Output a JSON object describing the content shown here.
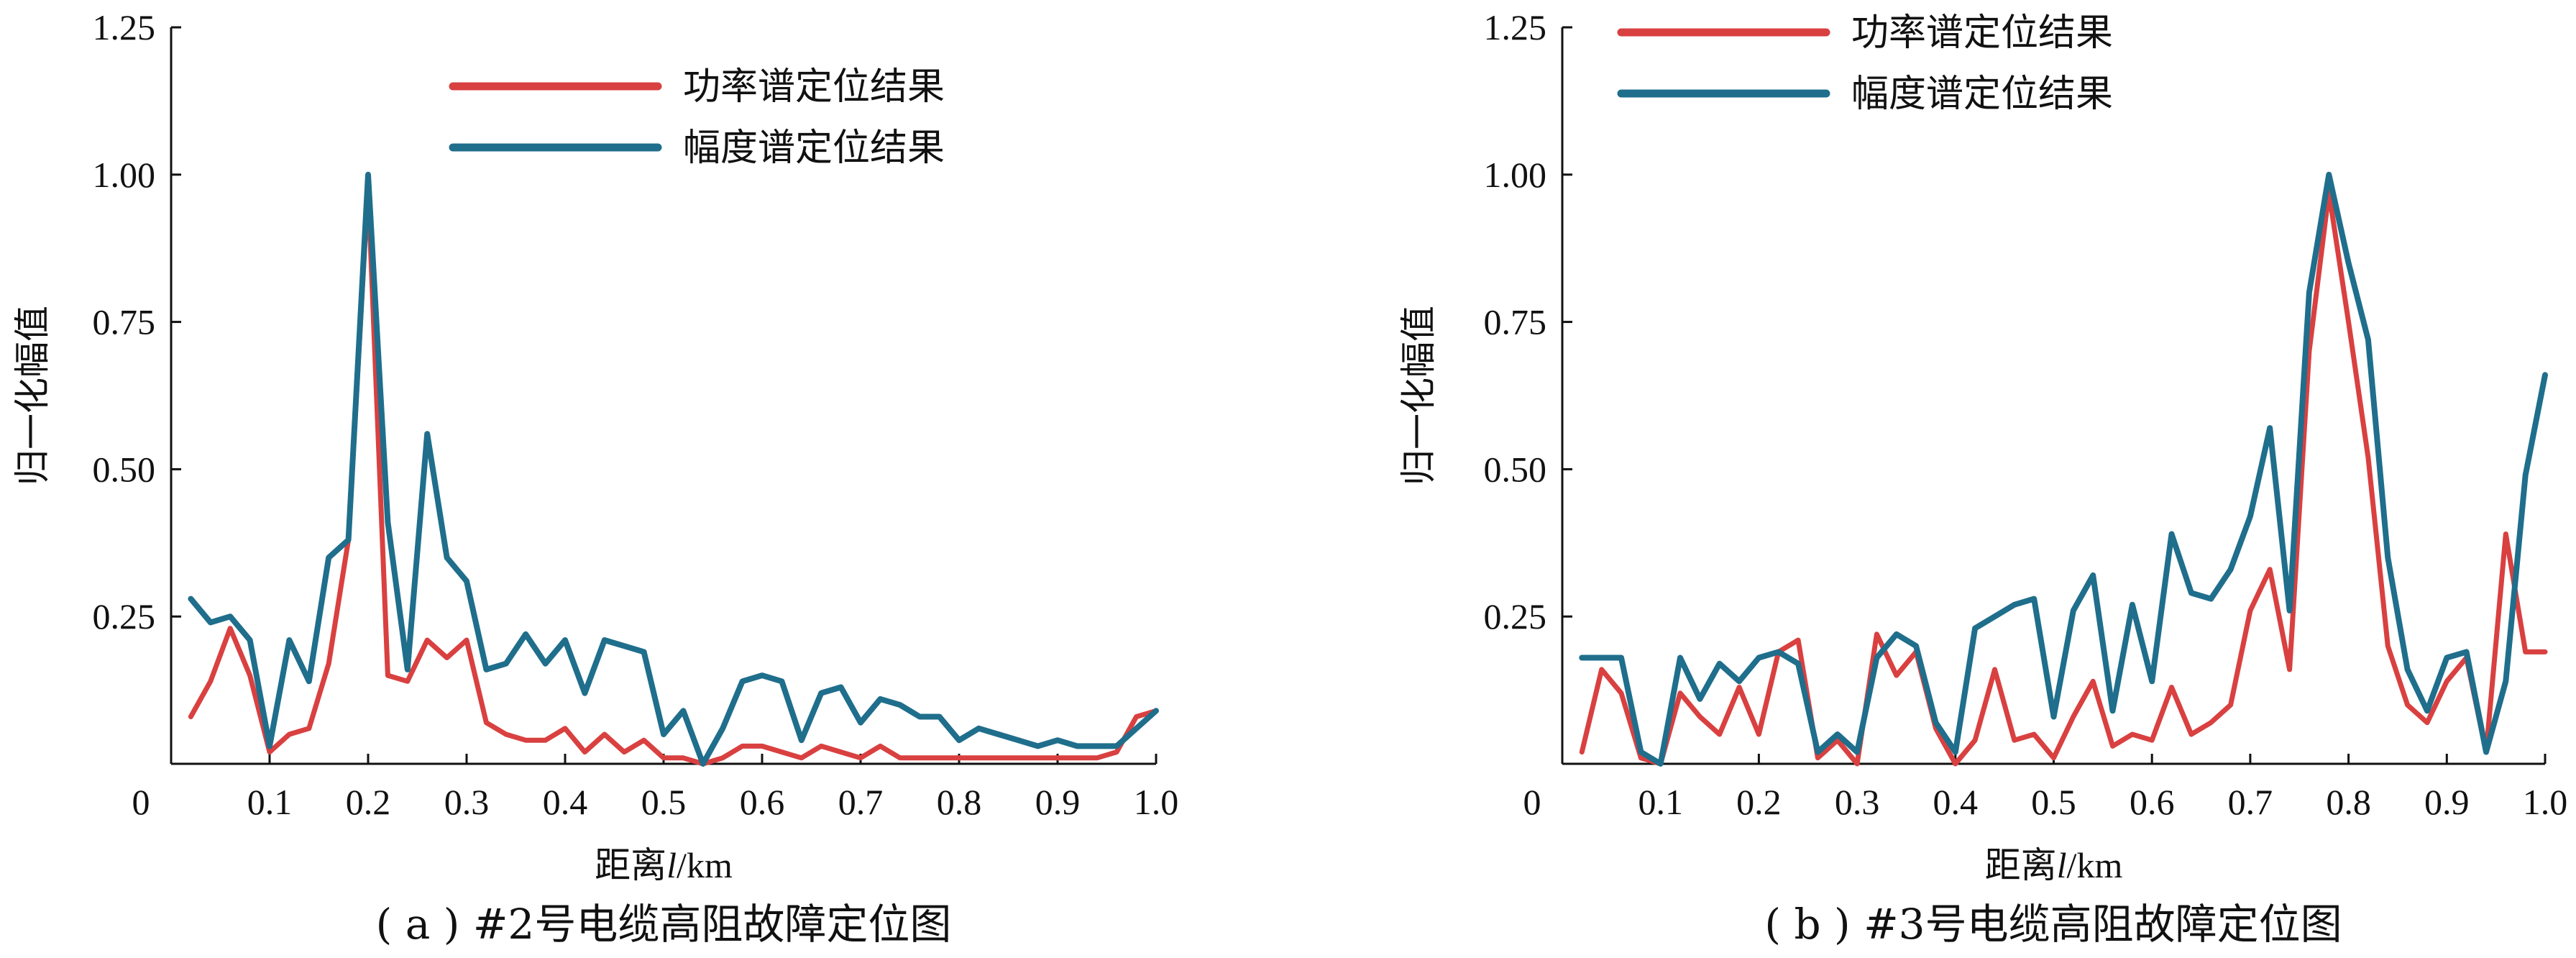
{
  "chart_data": [
    {
      "type": "line",
      "caption": "( a ) #2号电缆高阻故障定位图",
      "xlabel_prefix": "距离",
      "xlabel_var": "l",
      "xlabel_unit": "/km",
      "ylabel": "归一化幅值",
      "xlim": [
        0,
        1.0
      ],
      "ylim": [
        0,
        1.25
      ],
      "xticks": [
        "0",
        "0.1",
        "0.2",
        "0.3",
        "0.4",
        "0.5",
        "0.6",
        "0.7",
        "0.8",
        "0.9",
        "1.0"
      ],
      "yticks": [
        "0.25",
        "0.50",
        "0.75",
        "1.00",
        "1.25"
      ],
      "legend_position": "top-center",
      "colors": {
        "power": "#d94040",
        "amplitude": "#1f6e8c"
      },
      "series": [
        {
          "name": "功率谱定位结果",
          "color": "#d94040",
          "x": [
            0.02,
            0.04,
            0.06,
            0.08,
            0.1,
            0.12,
            0.14,
            0.16,
            0.18,
            0.2,
            0.22,
            0.24,
            0.26,
            0.28,
            0.3,
            0.32,
            0.34,
            0.36,
            0.38,
            0.4,
            0.42,
            0.44,
            0.46,
            0.48,
            0.5,
            0.52,
            0.54,
            0.56,
            0.58,
            0.6,
            0.62,
            0.64,
            0.66,
            0.68,
            0.7,
            0.72,
            0.74,
            0.76,
            0.78,
            0.8,
            0.82,
            0.84,
            0.86,
            0.88,
            0.9,
            0.92,
            0.94,
            0.96,
            0.98,
            1.0
          ],
          "values": [
            0.08,
            0.14,
            0.23,
            0.15,
            0.02,
            0.05,
            0.06,
            0.17,
            0.38,
            0.98,
            0.15,
            0.14,
            0.21,
            0.18,
            0.21,
            0.07,
            0.05,
            0.04,
            0.04,
            0.06,
            0.02,
            0.05,
            0.02,
            0.04,
            0.01,
            0.01,
            0.0,
            0.01,
            0.03,
            0.03,
            0.02,
            0.01,
            0.03,
            0.02,
            0.01,
            0.03,
            0.01,
            0.01,
            0.01,
            0.01,
            0.01,
            0.01,
            0.01,
            0.01,
            0.01,
            0.01,
            0.01,
            0.02,
            0.08,
            0.09
          ]
        },
        {
          "name": "幅度谱定位结果",
          "color": "#1f6e8c",
          "x": [
            0.02,
            0.04,
            0.06,
            0.08,
            0.1,
            0.12,
            0.14,
            0.16,
            0.18,
            0.2,
            0.22,
            0.24,
            0.26,
            0.28,
            0.3,
            0.32,
            0.34,
            0.36,
            0.38,
            0.4,
            0.42,
            0.44,
            0.46,
            0.48,
            0.5,
            0.52,
            0.54,
            0.56,
            0.58,
            0.6,
            0.62,
            0.64,
            0.66,
            0.68,
            0.7,
            0.72,
            0.74,
            0.76,
            0.78,
            0.8,
            0.82,
            0.84,
            0.86,
            0.88,
            0.9,
            0.92,
            0.94,
            0.96,
            0.98,
            1.0
          ],
          "values": [
            0.28,
            0.24,
            0.25,
            0.21,
            0.03,
            0.21,
            0.14,
            0.35,
            0.38,
            1.0,
            0.41,
            0.16,
            0.56,
            0.35,
            0.31,
            0.16,
            0.17,
            0.22,
            0.17,
            0.21,
            0.12,
            0.21,
            0.2,
            0.19,
            0.05,
            0.09,
            0.0,
            0.06,
            0.14,
            0.15,
            0.14,
            0.04,
            0.12,
            0.13,
            0.07,
            0.11,
            0.1,
            0.08,
            0.08,
            0.04,
            0.06,
            0.05,
            0.04,
            0.03,
            0.04,
            0.03,
            0.03,
            0.03,
            0.06,
            0.09
          ]
        }
      ]
    },
    {
      "type": "line",
      "caption": "( b ) #3号电缆高阻故障定位图",
      "xlabel_prefix": "距离",
      "xlabel_var": "l",
      "xlabel_unit": "/km",
      "ylabel": "归一化幅值",
      "xlim": [
        0,
        1.0
      ],
      "ylim": [
        0,
        1.25
      ],
      "xticks": [
        "0",
        "0.1",
        "0.2",
        "0.3",
        "0.4",
        "0.5",
        "0.6",
        "0.7",
        "0.8",
        "0.9",
        "1.0"
      ],
      "yticks": [
        "0.25",
        "0.50",
        "0.75",
        "1.00",
        "1.25"
      ],
      "legend_position": "top-left",
      "colors": {
        "power": "#d94040",
        "amplitude": "#1f6e8c"
      },
      "series": [
        {
          "name": "功率谱定位结果",
          "color": "#d94040",
          "x": [
            0.02,
            0.04,
            0.06,
            0.08,
            0.1,
            0.12,
            0.14,
            0.16,
            0.18,
            0.2,
            0.22,
            0.24,
            0.26,
            0.28,
            0.3,
            0.32,
            0.34,
            0.36,
            0.38,
            0.4,
            0.42,
            0.44,
            0.46,
            0.48,
            0.5,
            0.52,
            0.54,
            0.56,
            0.58,
            0.6,
            0.62,
            0.64,
            0.66,
            0.68,
            0.7,
            0.72,
            0.74,
            0.76,
            0.78,
            0.8,
            0.82,
            0.84,
            0.86,
            0.88,
            0.9,
            0.92,
            0.94,
            0.96,
            0.98,
            1.0
          ],
          "values": [
            0.02,
            0.16,
            0.12,
            0.01,
            0.0,
            0.12,
            0.08,
            0.05,
            0.13,
            0.05,
            0.19,
            0.21,
            0.01,
            0.04,
            0.0,
            0.22,
            0.15,
            0.19,
            0.06,
            0.0,
            0.04,
            0.16,
            0.04,
            0.05,
            0.01,
            0.08,
            0.14,
            0.03,
            0.05,
            0.04,
            0.13,
            0.05,
            0.07,
            0.1,
            0.26,
            0.33,
            0.16,
            0.7,
            0.97,
            0.75,
            0.52,
            0.2,
            0.1,
            0.07,
            0.14,
            0.18,
            0.02,
            0.39,
            0.19,
            0.19
          ]
        },
        {
          "name": "幅度谱定位结果",
          "color": "#1f6e8c",
          "x": [
            0.02,
            0.04,
            0.06,
            0.08,
            0.1,
            0.12,
            0.14,
            0.16,
            0.18,
            0.2,
            0.22,
            0.24,
            0.26,
            0.28,
            0.3,
            0.32,
            0.34,
            0.36,
            0.38,
            0.4,
            0.42,
            0.44,
            0.46,
            0.48,
            0.5,
            0.52,
            0.54,
            0.56,
            0.58,
            0.6,
            0.62,
            0.64,
            0.66,
            0.68,
            0.7,
            0.72,
            0.74,
            0.76,
            0.78,
            0.8,
            0.82,
            0.84,
            0.86,
            0.88,
            0.9,
            0.92,
            0.94,
            0.96,
            0.98,
            1.0
          ],
          "values": [
            0.18,
            0.18,
            0.18,
            0.02,
            0.0,
            0.18,
            0.11,
            0.17,
            0.14,
            0.18,
            0.19,
            0.17,
            0.02,
            0.05,
            0.02,
            0.18,
            0.22,
            0.2,
            0.07,
            0.02,
            0.23,
            0.25,
            0.27,
            0.28,
            0.08,
            0.26,
            0.32,
            0.09,
            0.27,
            0.14,
            0.39,
            0.29,
            0.28,
            0.33,
            0.42,
            0.57,
            0.26,
            0.8,
            1.0,
            0.85,
            0.72,
            0.35,
            0.16,
            0.09,
            0.18,
            0.19,
            0.02,
            0.14,
            0.49,
            0.66
          ]
        }
      ]
    }
  ]
}
